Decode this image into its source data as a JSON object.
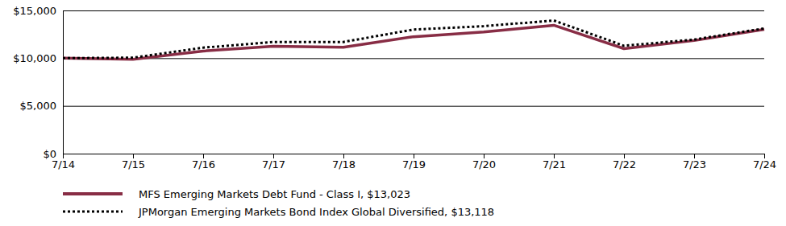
{
  "chart_data": {
    "type": "line",
    "categories": [
      "7/14",
      "7/15",
      "7/16",
      "7/17",
      "7/18",
      "7/19",
      "7/20",
      "7/21",
      "7/22",
      "7/23",
      "7/24"
    ],
    "series": [
      {
        "name": "MFS Emerging Markets Debt Fund - Class I, $13,023",
        "color": "#882d45",
        "line_style": "solid",
        "values": [
          10000,
          9880,
          10750,
          11250,
          11150,
          12250,
          12750,
          13450,
          11000,
          11850,
          13023
        ]
      },
      {
        "name": "JPMorgan Emerging Markets Bond Index Global Diversified, $13,118",
        "color": "#000000",
        "line_style": "dotted",
        "values": [
          10000,
          10050,
          11100,
          11700,
          11700,
          13000,
          13350,
          13950,
          11300,
          11950,
          13118
        ]
      }
    ],
    "ylim": [
      0,
      15000
    ],
    "yticks": [
      {
        "value": 0,
        "label": "$0"
      },
      {
        "value": 5000,
        "label": "$5,000"
      },
      {
        "value": 10000,
        "label": "$10,000"
      },
      {
        "value": 15000,
        "label": "$15,000"
      }
    ],
    "grid": true,
    "legend": "bottom"
  }
}
